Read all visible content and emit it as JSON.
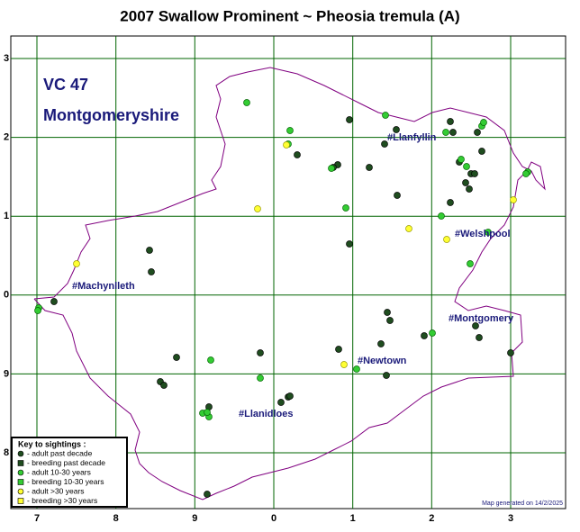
{
  "header": {
    "title": "2007 Swallow Prominent ~ Pheosia tremula (A)"
  },
  "vice_county": {
    "number": "VC 47",
    "name": "Montgomeryshire"
  },
  "grid": {
    "y_labels": [
      "3",
      "2",
      "1",
      "0",
      "9",
      "8"
    ],
    "x_labels": [
      "7",
      "8",
      "9",
      "0",
      "1",
      "2",
      "3"
    ]
  },
  "towns": [
    {
      "label": "#Llanfyllin"
    },
    {
      "label": "#Welshpool"
    },
    {
      "label": "#Machynlleth"
    },
    {
      "label": "#Montgomery"
    },
    {
      "label": "#Newtown"
    },
    {
      "label": "#Llanidloes"
    }
  ],
  "key": {
    "title": "Key to sightings :",
    "items": [
      {
        "label": "- adult past decade"
      },
      {
        "label": "- breeding past decade"
      },
      {
        "label": "- adult 10-30 years"
      },
      {
        "label": "- breeding 10-30 years"
      },
      {
        "label": "- adult >30 years"
      },
      {
        "label": "- breeding >30 years"
      }
    ]
  },
  "footer": {
    "text": "Map generated on 14/2/2025"
  }
}
